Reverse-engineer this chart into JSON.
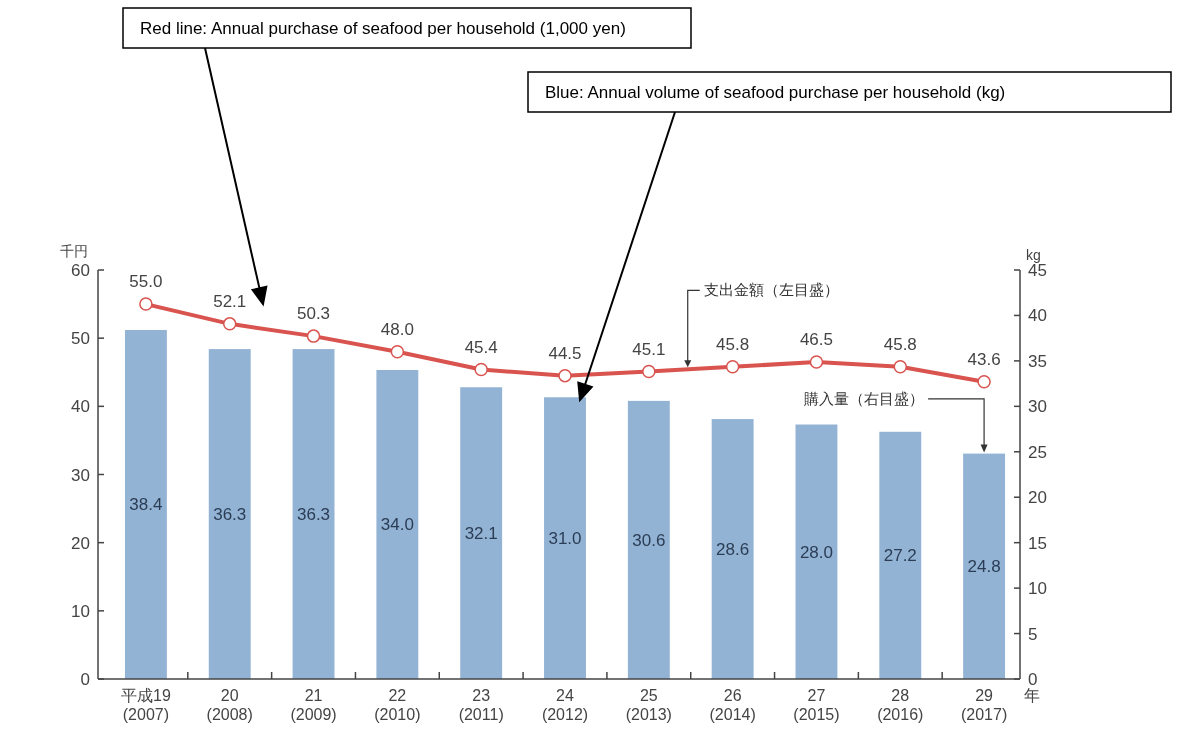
{
  "chart_data": {
    "type": "bar",
    "categories": [
      "平成19 (2007)",
      "20 (2008)",
      "21 (2009)",
      "22 (2010)",
      "23 (2011)",
      "24 (2012)",
      "25 (2013)",
      "26 (2014)",
      "27 (2015)",
      "28 (2016)",
      "29 (2017)"
    ],
    "xlabel": "年",
    "ylabel": "千円",
    "y2label": "kg",
    "ylim": [
      0,
      60
    ],
    "yticks": [
      0,
      10,
      20,
      30,
      40,
      50,
      60
    ],
    "y2lim": [
      0,
      45
    ],
    "y2ticks": [
      0,
      5,
      10,
      15,
      20,
      25,
      30,
      35,
      40,
      45
    ],
    "series": [
      {
        "name": "購入量（右目盛）",
        "axis": "y2",
        "color": "#93b3d4",
        "values": [
          38.4,
          36.3,
          36.3,
          34.0,
          32.1,
          31.0,
          30.6,
          28.6,
          28.0,
          27.2,
          24.8
        ],
        "value_labels": [
          "38.4",
          "36.3",
          "36.3",
          "34.0",
          "32.1",
          "31.0",
          "30.6",
          "28.6",
          "28.0",
          "27.2",
          "24.8"
        ]
      },
      {
        "name": "支出金額（左目盛）",
        "type": "line",
        "axis": "y",
        "color": "#d9534f",
        "marker": "circle",
        "values": [
          55.0,
          52.1,
          50.3,
          48.0,
          45.4,
          44.5,
          45.1,
          45.8,
          46.5,
          45.8,
          43.6
        ],
        "value_labels": [
          "55.0",
          "52.1",
          "50.3",
          "48.0",
          "45.4",
          "44.5",
          "45.1",
          "45.8",
          "46.5",
          "45.8",
          "43.6"
        ]
      }
    ],
    "annotations": [
      "Red line: Annual purchase of seafood per household (1,000 yen)",
      "Blue: Annual volume of seafood purchase per household (kg)"
    ]
  }
}
